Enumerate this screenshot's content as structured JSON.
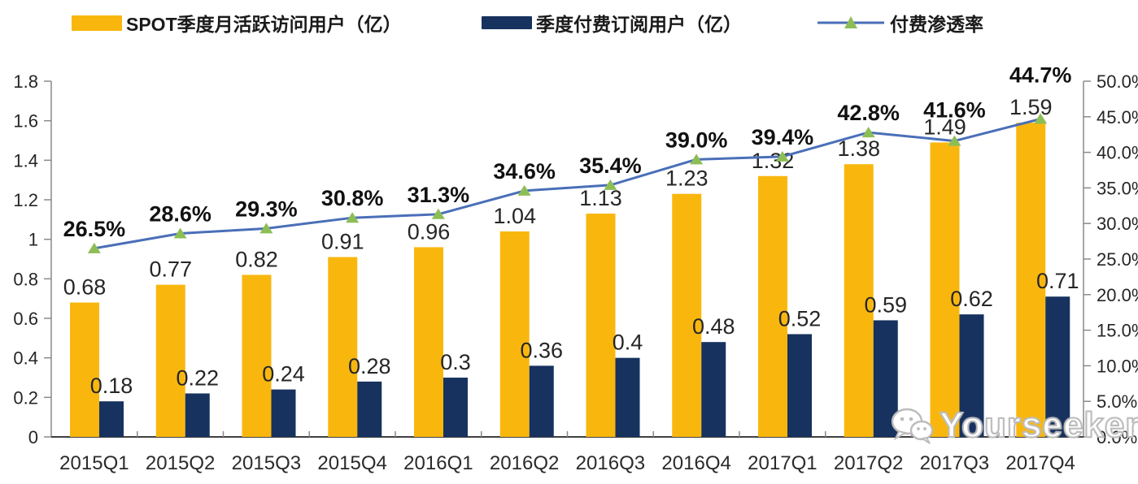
{
  "legend": {
    "mau_label": "SPOT季度月活跃访问用户（亿）",
    "subs_label": "季度付费订阅用户（亿）",
    "penetration_label": "付费渗透率"
  },
  "watermark": {
    "text": "Yourseeker"
  },
  "colors": {
    "mau_bar": "#F9B70E",
    "subs_bar": "#17325F",
    "line": "#4A6FB8",
    "marker": "#8DBE56",
    "label_text": "#262626",
    "pct_text": "#111111",
    "axis_side": "#8a8a8a",
    "axis_bottom": "#404040",
    "tick": "#8a8a8a"
  },
  "chart_data": {
    "type": "bar",
    "subtype": "grouped-bars-with-line",
    "title": "",
    "categories": [
      "2015Q1",
      "2015Q2",
      "2015Q3",
      "2015Q4",
      "2016Q1",
      "2016Q2",
      "2016Q3",
      "2016Q4",
      "2017Q1",
      "2017Q2",
      "2017Q3",
      "2017Q4"
    ],
    "series": [
      {
        "name": "SPOT季度月活跃访问用户（亿）",
        "type": "bar",
        "axis": "left",
        "values": [
          0.68,
          0.77,
          0.82,
          0.91,
          0.96,
          1.04,
          1.13,
          1.23,
          1.32,
          1.38,
          1.49,
          1.59
        ]
      },
      {
        "name": "季度付费订阅用户（亿）",
        "type": "bar",
        "axis": "left",
        "values": [
          0.18,
          0.22,
          0.24,
          0.28,
          0.3,
          0.36,
          0.4,
          0.48,
          0.52,
          0.59,
          0.62,
          0.71
        ]
      },
      {
        "name": "付费渗透率",
        "type": "line",
        "axis": "right",
        "values": [
          26.5,
          28.6,
          29.3,
          30.8,
          31.3,
          34.6,
          35.4,
          39.0,
          39.4,
          42.8,
          41.6,
          44.7
        ]
      }
    ],
    "left_axis": {
      "min": 0,
      "max": 1.8,
      "step": 0.2,
      "tick_labels": [
        "0",
        "0.2",
        "0.4",
        "0.6",
        "0.8",
        "1",
        "1.2",
        "1.4",
        "1.6",
        "1.8"
      ]
    },
    "right_axis": {
      "min": 0,
      "max": 50,
      "step": 5,
      "tick_labels": [
        "0.0%",
        "5.0%",
        "10.0%",
        "15.0%",
        "20.0%",
        "25.0%",
        "30.0%",
        "35.0%",
        "40.0%",
        "45.0%",
        "50.0%"
      ]
    },
    "grid": false,
    "legend_position": "top",
    "data_labels_shown": true
  }
}
